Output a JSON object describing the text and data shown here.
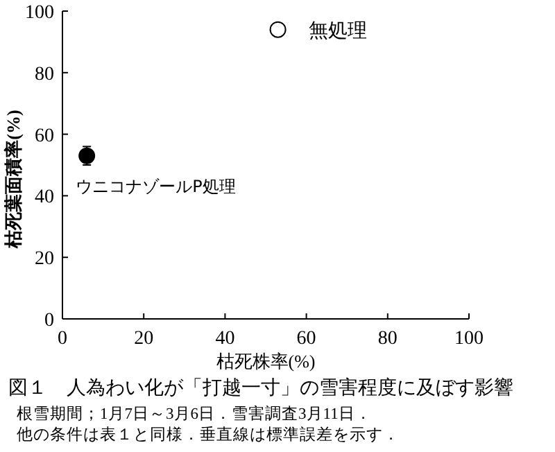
{
  "chart_data": {
    "type": "scatter",
    "title": "図１　人為わい化が「打越一寸」の雪害程度に及ぼす影響",
    "xlabel": "枯死株率(%)",
    "ylabel": "枯死葉面積率(%)",
    "xlim": [
      0,
      100
    ],
    "ylim": [
      0,
      100
    ],
    "xticks": [
      0,
      20,
      40,
      60,
      80,
      100
    ],
    "yticks": [
      0,
      20,
      40,
      60,
      80,
      100
    ],
    "marker": "circle",
    "grid": false,
    "series": [
      {
        "name": "無処理",
        "color": "#ffffff",
        "x": [
          53
        ],
        "values": [
          94
        ]
      },
      {
        "name": "ウニコナゾールP処理",
        "color": "#000000",
        "x": [
          6
        ],
        "values": [
          53
        ],
        "errors": [
          3
        ]
      }
    ],
    "annotations": [
      "根雪期間；1月7日～3月6日．雪害調査3月11日．",
      "他の条件は表１と同様．垂直線は標準誤差を示す．"
    ]
  }
}
